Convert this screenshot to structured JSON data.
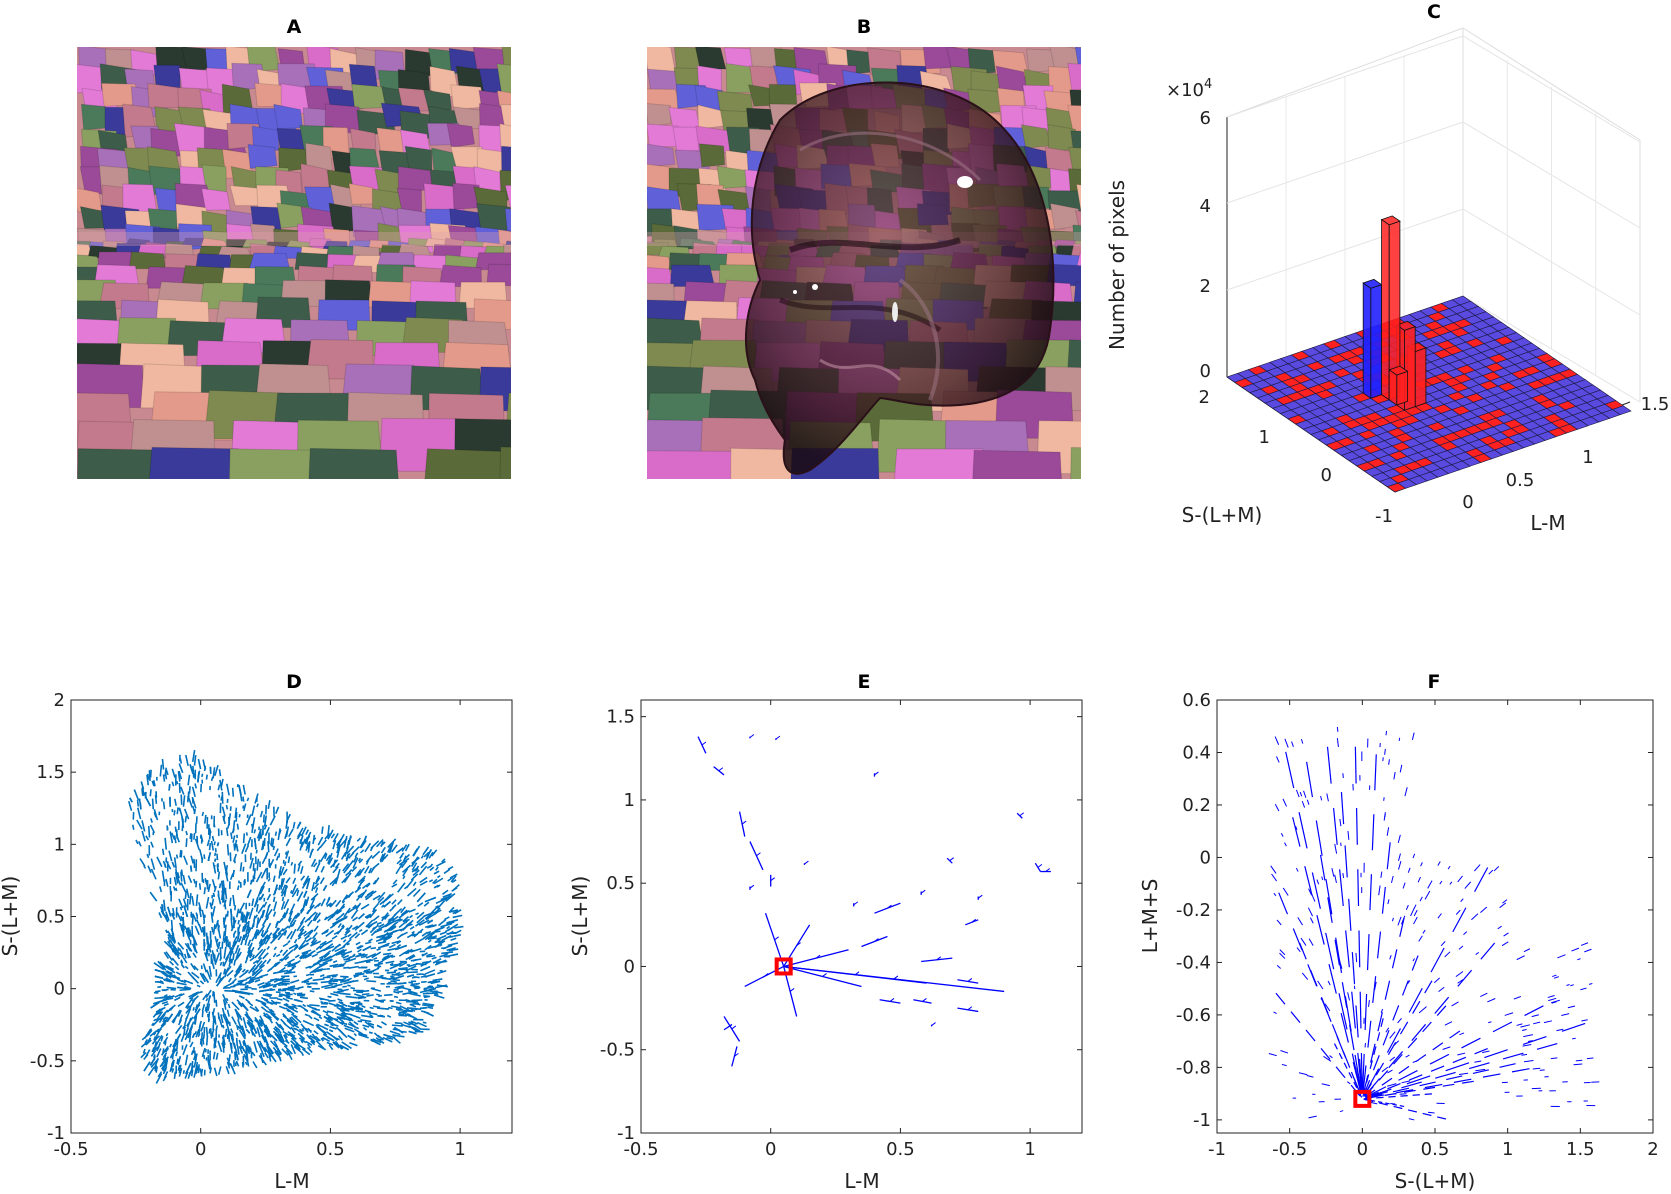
{
  "colors": {
    "quiver_d": "#0072bd",
    "quiver_ef": "#0000ff",
    "marker": "#ff0000",
    "bar_red": "#ff2020",
    "bar_blue": "#2020ff",
    "scene_palette": [
      "#e49a8a",
      "#c27a8c",
      "#7e8a50",
      "#5a6a38",
      "#6060d8",
      "#3a3a9a",
      "#d86cc8",
      "#9a4a98",
      "#2a3a30",
      "#4a7a5a",
      "#f0b8a0",
      "#a870b8",
      "#c09090",
      "#8aa060",
      "#e27ad6",
      "#3d5c4a"
    ]
  },
  "panel_a": {
    "label": "A",
    "image": "Voronoi-textured scene, empty room"
  },
  "panel_b": {
    "label": "B",
    "image": "Voronoi-textured scene with transparent glass object"
  },
  "panel_c": {
    "label": "C",
    "exponent": "×10",
    "exponent_power": "4",
    "z_label": "Number of pixels",
    "x_label": "L-M",
    "y_label": "S-(L+M)",
    "z_ticks": [
      "0",
      "2",
      "4",
      "6"
    ],
    "x_ticks": [
      "0",
      "0.5",
      "1",
      "1.5"
    ],
    "y_ticks": [
      "-1",
      "0",
      "1",
      "2"
    ]
  },
  "chart_data": [
    {
      "panel": "D",
      "type": "quiver",
      "xlabel": "L-M",
      "ylabel": "S-(L+M)",
      "xlim": [
        -0.5,
        1.2
      ],
      "ylim": [
        -1,
        2
      ],
      "x_ticks": [
        "-0.5",
        "0",
        "0.5",
        "1"
      ],
      "y_ticks": [
        "-1",
        "-0.5",
        "0",
        "0.5",
        "1",
        "1.5",
        "2"
      ],
      "point_cloud_outline": [
        [
          -0.27,
          1.38
        ],
        [
          -0.05,
          1.62
        ],
        [
          0.4,
          1.1
        ],
        [
          0.95,
          0.9
        ],
        [
          1.0,
          0.48
        ],
        [
          0.85,
          -0.3
        ],
        [
          -0.15,
          -0.62
        ],
        [
          -0.22,
          -0.45
        ],
        [
          -0.12,
          0.3
        ],
        [
          -0.27,
          1.15
        ]
      ]
    },
    {
      "panel": "E",
      "type": "quiver",
      "xlabel": "L-M",
      "ylabel": "S-(L+M)",
      "xlim": [
        -0.5,
        1.2
      ],
      "ylim": [
        -1,
        1.6
      ],
      "x_ticks": [
        "-0.5",
        "0",
        "0.5",
        "1"
      ],
      "y_ticks": [
        "-1",
        "-0.5",
        "0",
        "0.5",
        "1",
        "1.5"
      ],
      "marker": [
        0.05,
        0.0
      ],
      "segments": [
        [
          -0.28,
          1.38,
          -0.25,
          1.28
        ],
        [
          -0.22,
          1.2,
          -0.18,
          1.15
        ],
        [
          -0.08,
          1.38,
          -0.08,
          1.37
        ],
        [
          0.02,
          1.37,
          0.02,
          1.36
        ],
        [
          -0.12,
          0.93,
          -0.1,
          0.78
        ],
        [
          -0.08,
          0.75,
          -0.03,
          0.58
        ],
        [
          0.0,
          0.55,
          0.0,
          0.48
        ],
        [
          -0.08,
          0.48,
          -0.08,
          0.46
        ],
        [
          0.13,
          0.62,
          0.13,
          0.61
        ],
        [
          0.4,
          1.16,
          0.4,
          1.14
        ],
        [
          0.68,
          0.65,
          0.7,
          0.62
        ],
        [
          0.95,
          0.92,
          0.97,
          0.89
        ],
        [
          1.02,
          0.62,
          1.04,
          0.57
        ],
        [
          1.04,
          0.57,
          1.08,
          0.57
        ],
        [
          0.05,
          0.0,
          0.9,
          -0.15
        ],
        [
          0.05,
          0.0,
          0.6,
          -0.1
        ],
        [
          0.05,
          0.0,
          0.35,
          -0.12
        ],
        [
          0.05,
          0.0,
          0.3,
          0.1
        ],
        [
          0.05,
          0.0,
          0.15,
          0.25
        ],
        [
          0.05,
          0.0,
          -0.1,
          -0.12
        ],
        [
          0.05,
          0.0,
          0.1,
          -0.3
        ],
        [
          0.05,
          0.0,
          -0.02,
          0.32
        ],
        [
          0.35,
          0.12,
          0.45,
          0.18
        ],
        [
          0.4,
          0.32,
          0.5,
          0.38
        ],
        [
          0.58,
          0.03,
          0.7,
          0.05
        ],
        [
          0.72,
          -0.08,
          0.8,
          -0.1
        ],
        [
          0.75,
          0.25,
          0.8,
          0.28
        ],
        [
          0.55,
          -0.2,
          0.62,
          -0.22
        ],
        [
          0.42,
          -0.2,
          0.5,
          -0.22
        ],
        [
          0.72,
          -0.25,
          0.8,
          -0.27
        ],
        [
          -0.18,
          -0.3,
          -0.12,
          -0.45
        ],
        [
          -0.13,
          -0.48,
          -0.15,
          -0.6
        ],
        [
          -0.15,
          -0.35,
          -0.18,
          -0.38
        ],
        [
          0.62,
          -0.35,
          0.62,
          -0.36
        ],
        [
          0.58,
          0.45,
          0.58,
          0.43
        ],
        [
          0.8,
          0.42,
          0.8,
          0.4
        ],
        [
          0.32,
          0.38,
          0.32,
          0.36
        ]
      ]
    },
    {
      "panel": "F",
      "type": "quiver",
      "xlabel": "S-(L+M)",
      "ylabel": "L+M+S",
      "xlim": [
        -1,
        2
      ],
      "ylim": [
        -1.05,
        0.6
      ],
      "x_ticks": [
        "-1",
        "-0.5",
        "0",
        "0.5",
        "1",
        "1.5",
        "2"
      ],
      "y_ticks": [
        "-1",
        "-0.8",
        "-0.6",
        "-0.4",
        "-0.2",
        "0",
        "0.2",
        "0.4",
        "0.6"
      ],
      "marker": [
        0.0,
        -0.92
      ],
      "fan_endpoints": [
        [
          -0.55,
          0.46
        ],
        [
          -0.4,
          0.42
        ],
        [
          -0.25,
          0.48
        ],
        [
          -0.05,
          0.48
        ],
        [
          -0.5,
          0.2
        ],
        [
          -0.6,
          -0.1
        ],
        [
          -0.45,
          -0.3
        ],
        [
          -0.62,
          -0.5
        ],
        [
          -0.3,
          0.05
        ],
        [
          -0.15,
          0.3
        ],
        [
          0.1,
          0.45
        ],
        [
          0.2,
          0.1
        ],
        [
          0.3,
          -0.2
        ],
        [
          0.4,
          -0.35
        ],
        [
          0.5,
          -0.45
        ],
        [
          0.6,
          -0.55
        ],
        [
          0.7,
          -0.65
        ],
        [
          0.9,
          -0.72
        ],
        [
          1.1,
          -0.78
        ],
        [
          1.2,
          -0.8
        ],
        [
          0.8,
          -0.85
        ],
        [
          0.5,
          -0.9
        ],
        [
          0.3,
          -0.95
        ],
        [
          0.6,
          -1.0
        ],
        [
          -0.2,
          -0.7
        ],
        [
          0.15,
          -0.6
        ],
        [
          0.9,
          0.0
        ],
        [
          0.95,
          -0.3
        ],
        [
          1.3,
          -0.55
        ],
        [
          1.4,
          -0.7
        ],
        [
          1.6,
          -0.62
        ]
      ]
    }
  ],
  "panels": {
    "d": {
      "label": "D"
    },
    "e": {
      "label": "E"
    },
    "f": {
      "label": "F"
    }
  }
}
